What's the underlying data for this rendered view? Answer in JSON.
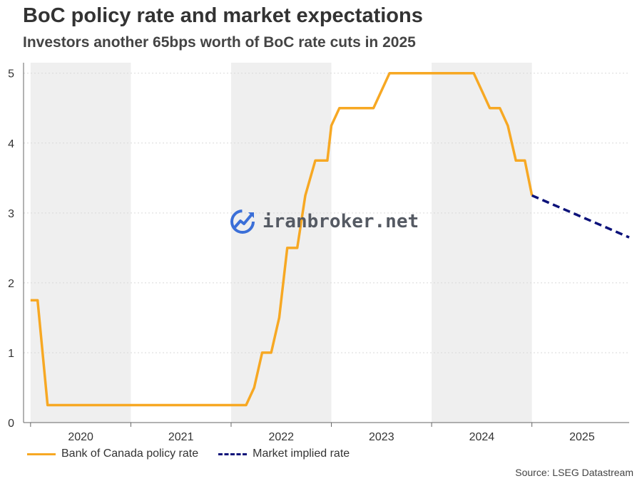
{
  "title": "BoC policy rate and market expectations",
  "subtitle": "Investors another 65bps worth of BoC rate cuts in 2025",
  "source": "Source: LSEG Datastream",
  "watermark": "iranbroker.net",
  "colors": {
    "policy": "#F7A823",
    "market": "#0C127A",
    "band": "#EFEFEF",
    "grid": "#D9D9D9"
  },
  "chart_data": {
    "type": "line",
    "title": "BoC policy rate and market expectations",
    "xlabel": "",
    "ylabel": "",
    "xlim": [
      2019.93,
      2025.97
    ],
    "ylim": [
      0,
      5.15
    ],
    "yticks": [
      0,
      1,
      2,
      3,
      4,
      5
    ],
    "year_labels": [
      "2020",
      "2021",
      "2022",
      "2023",
      "2024",
      "2025"
    ],
    "shaded_years": [
      2020,
      2022,
      2024
    ],
    "legend": {
      "position": "bottom-left"
    },
    "series": [
      {
        "name": "Bank of Canada policy rate",
        "style": "solid",
        "points": [
          [
            2020.0,
            1.75
          ],
          [
            2020.07,
            1.75
          ],
          [
            2020.17,
            0.25
          ],
          [
            2021.17,
            0.25
          ],
          [
            2022.15,
            0.25
          ],
          [
            2022.23,
            0.5
          ],
          [
            2022.31,
            1.0
          ],
          [
            2022.4,
            1.0
          ],
          [
            2022.48,
            1.5
          ],
          [
            2022.56,
            2.5
          ],
          [
            2022.66,
            2.5
          ],
          [
            2022.74,
            3.25
          ],
          [
            2022.84,
            3.75
          ],
          [
            2022.96,
            3.75
          ],
          [
            2023.0,
            4.25
          ],
          [
            2023.08,
            4.5
          ],
          [
            2023.42,
            4.5
          ],
          [
            2023.58,
            5.0
          ],
          [
            2024.42,
            5.0
          ],
          [
            2024.5,
            4.75
          ],
          [
            2024.58,
            4.5
          ],
          [
            2024.68,
            4.5
          ],
          [
            2024.76,
            4.25
          ],
          [
            2024.84,
            3.75
          ],
          [
            2024.93,
            3.75
          ],
          [
            2025.0,
            3.25
          ]
        ]
      },
      {
        "name": "Market implied rate",
        "style": "dashed",
        "points": [
          [
            2025.0,
            3.25
          ],
          [
            2025.97,
            2.65
          ]
        ]
      }
    ]
  }
}
